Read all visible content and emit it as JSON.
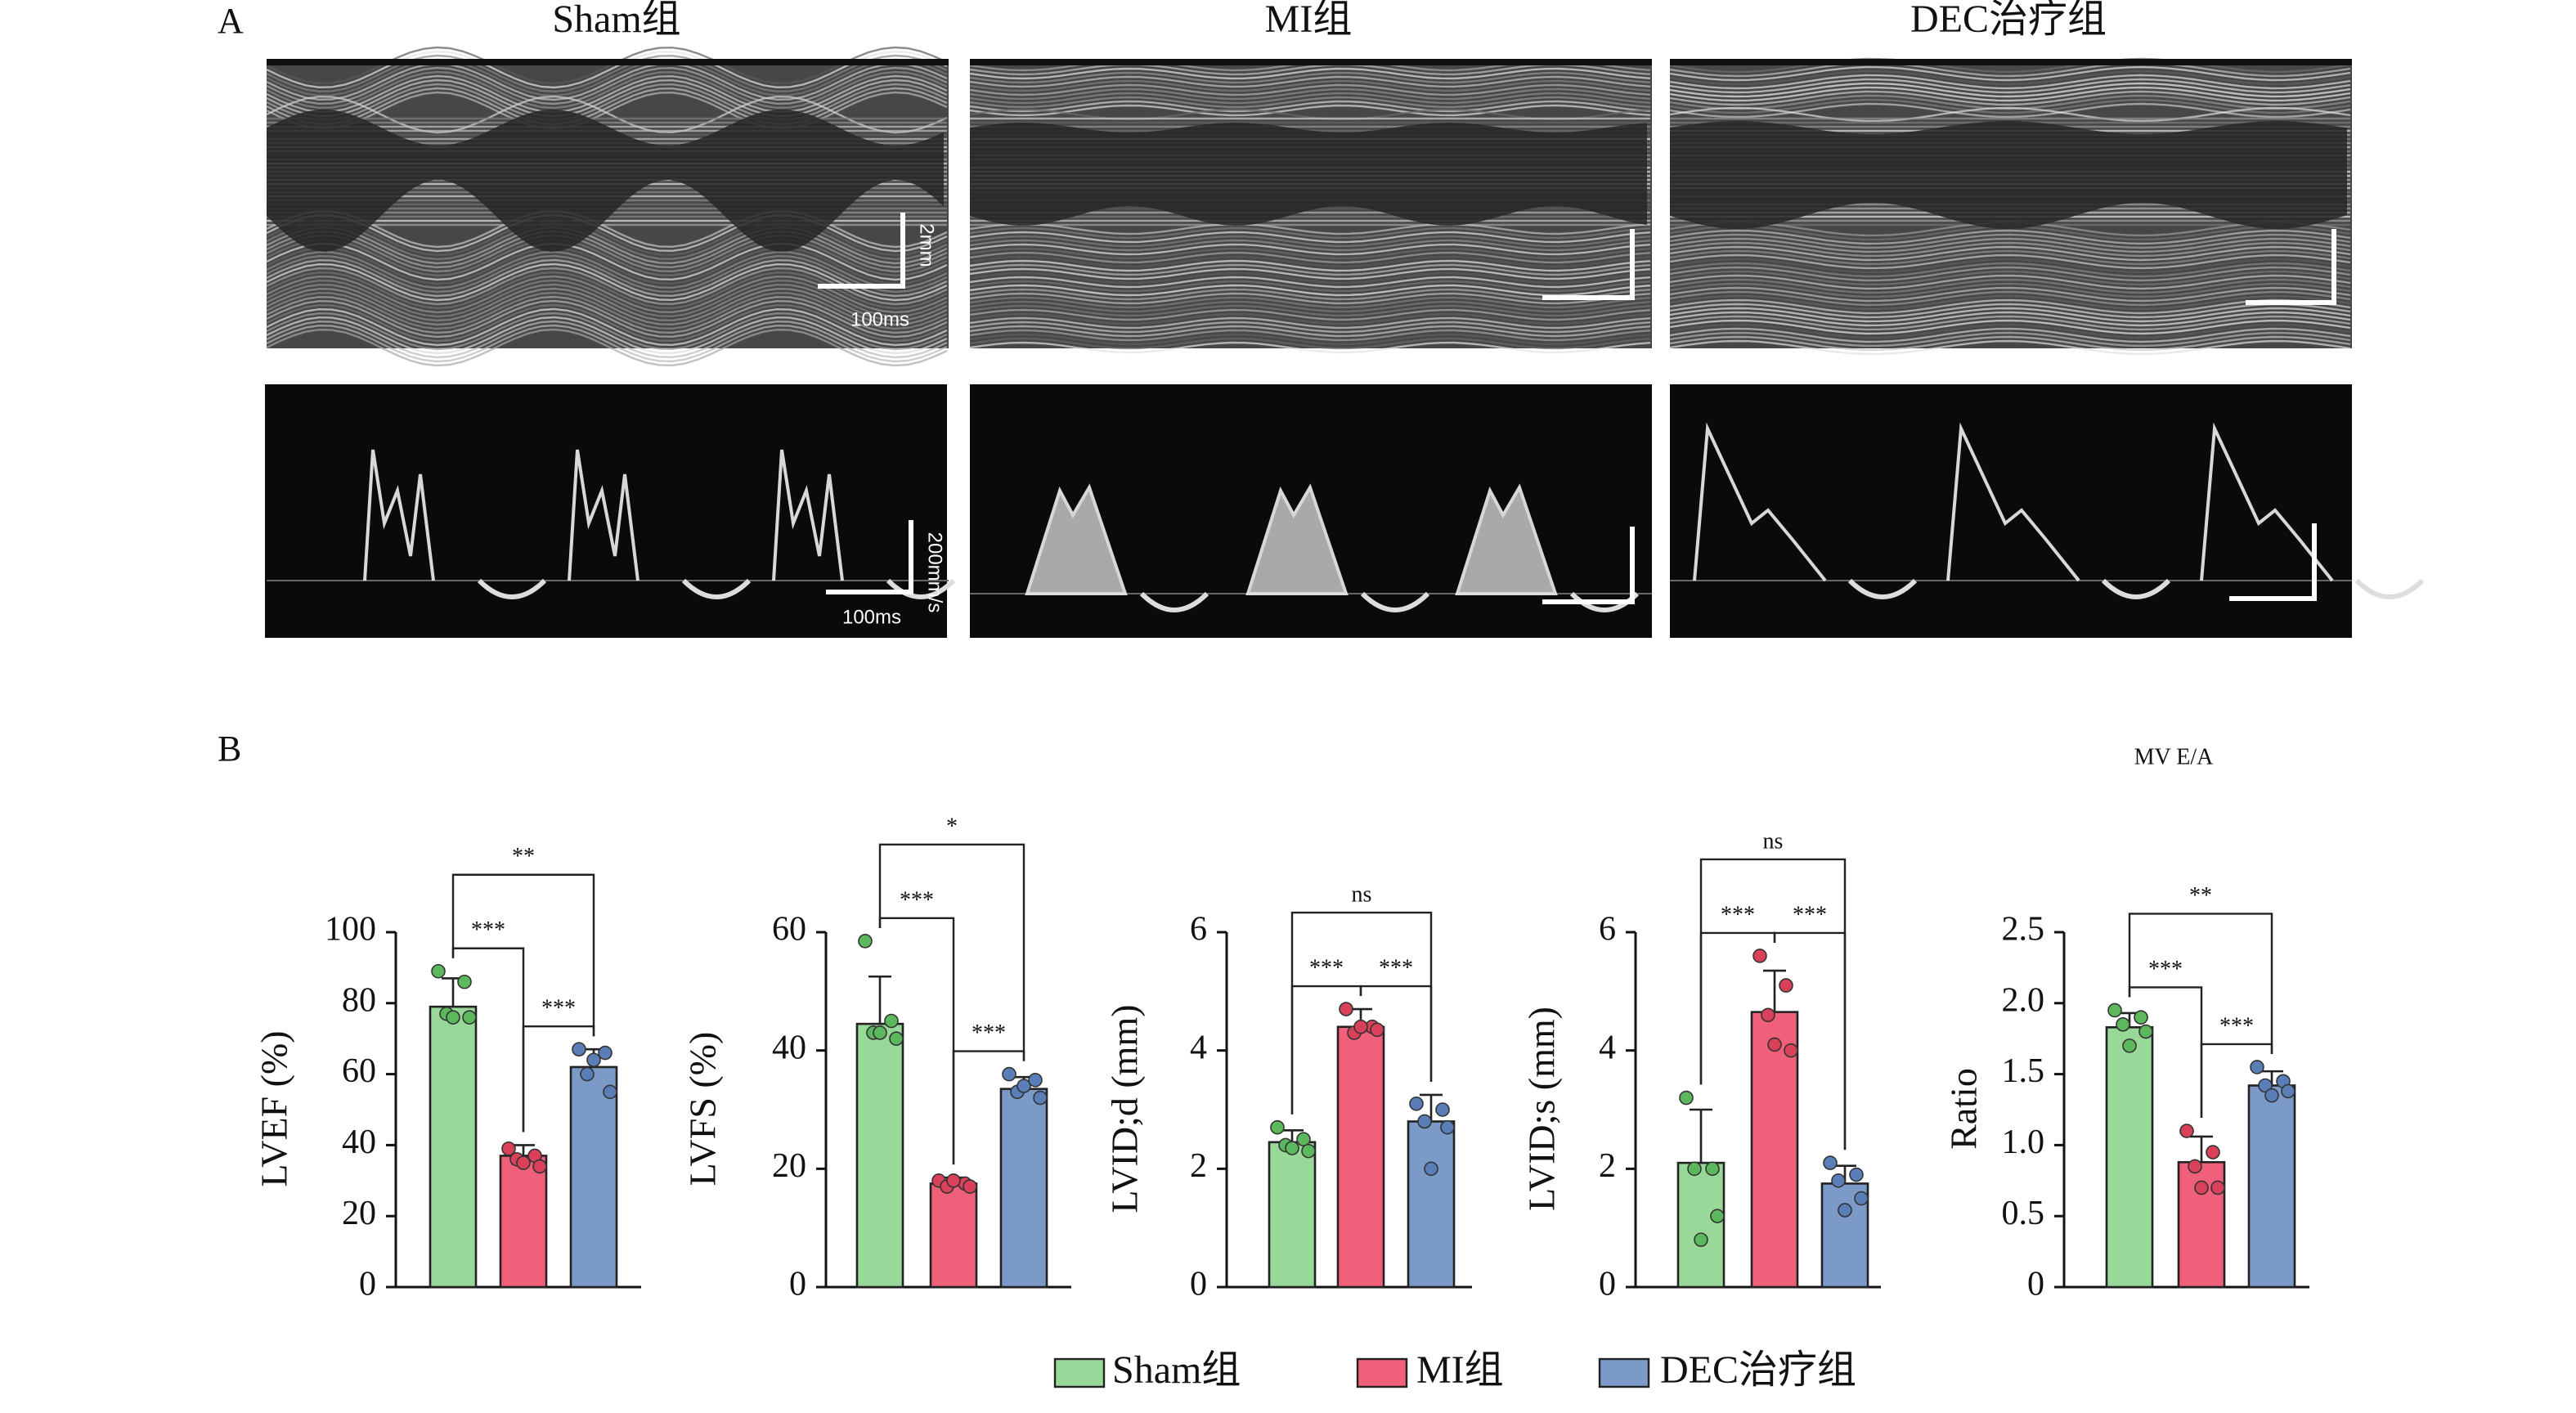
{
  "panel_a": {
    "label": "A",
    "columns": [
      "Sham组",
      "MI组",
      "DEC治疗组"
    ],
    "scale_labels": {
      "mmode_length": "2mm",
      "mmode_time": "100ms",
      "doppler_velocity": "200mm/s",
      "doppler_time": "100ms"
    }
  },
  "panel_b_label": "B",
  "legend": {
    "names": [
      "Sham组",
      "MI组",
      "DEC治疗组"
    ],
    "colors": [
      "#98d898",
      "#f0607a",
      "#7b9ac8"
    ]
  },
  "point_colors": [
    "#5cb85c",
    "#d9405a",
    "#5a7fb8"
  ],
  "chart_data": [
    {
      "type": "bar",
      "ylabel": "LVEF (%)",
      "values": [
        79,
        37,
        62
      ],
      "errors": [
        8,
        3,
        5
      ],
      "points": [
        [
          89,
          86,
          77,
          76,
          76
        ],
        [
          39,
          37,
          36,
          34,
          35
        ],
        [
          67,
          66,
          60,
          55,
          64
        ]
      ],
      "ylim": [
        0,
        100
      ],
      "yticks": [
        0,
        20,
        40,
        60,
        80,
        100
      ],
      "comparisons": [
        {
          "pair": [
            0,
            1
          ],
          "label": "***"
        },
        {
          "pair": [
            1,
            2
          ],
          "label": "***"
        },
        {
          "pair": [
            0,
            2
          ],
          "label": "**"
        }
      ]
    },
    {
      "type": "bar",
      "ylabel": "LVFS (%)",
      "values": [
        44.5,
        17.5,
        33.5
      ],
      "errors": [
        8,
        1,
        2
      ],
      "points": [
        [
          58.5,
          45,
          43,
          42,
          43
        ],
        [
          18,
          17.5,
          17,
          17,
          18
        ],
        [
          36,
          35,
          33,
          32,
          34
        ]
      ],
      "ylim": [
        0,
        60
      ],
      "yticks": [
        0,
        20,
        40,
        60
      ],
      "comparisons": [
        {
          "pair": [
            0,
            1
          ],
          "label": "***"
        },
        {
          "pair": [
            1,
            2
          ],
          "label": "***"
        },
        {
          "pair": [
            0,
            2
          ],
          "label": "*"
        }
      ]
    },
    {
      "type": "bar",
      "ylabel": "LVID;d (mm)",
      "values": [
        2.45,
        4.4,
        2.8
      ],
      "errors": [
        0.2,
        0.3,
        0.45
      ],
      "points": [
        [
          2.7,
          2.5,
          2.4,
          2.3,
          2.35
        ],
        [
          4.7,
          4.4,
          4.3,
          4.35,
          4.4
        ],
        [
          3.1,
          3.0,
          2.8,
          2.7,
          2.0
        ]
      ],
      "ylim": [
        0,
        6
      ],
      "yticks": [
        0,
        2,
        4,
        6
      ],
      "comparisons": [
        {
          "pair": [
            0,
            1
          ],
          "label": "***"
        },
        {
          "pair": [
            1,
            2
          ],
          "label": "***"
        },
        {
          "pair": [
            0,
            2
          ],
          "label": "ns"
        }
      ]
    },
    {
      "type": "bar",
      "ylabel": "LVID;s (mm)",
      "values": [
        2.1,
        4.65,
        1.75
      ],
      "errors": [
        0.9,
        0.7,
        0.3
      ],
      "points": [
        [
          3.2,
          2.0,
          2.0,
          1.2,
          0.8
        ],
        [
          5.6,
          5.1,
          4.6,
          4.0,
          4.1
        ],
        [
          2.1,
          1.9,
          1.8,
          1.5,
          1.3
        ]
      ],
      "ylim": [
        0,
        6
      ],
      "yticks": [
        0,
        2,
        4,
        6
      ],
      "comparisons": [
        {
          "pair": [
            0,
            1
          ],
          "label": "***"
        },
        {
          "pair": [
            1,
            2
          ],
          "label": "***"
        },
        {
          "pair": [
            0,
            2
          ],
          "label": "ns"
        }
      ]
    },
    {
      "type": "bar",
      "title": "MV E/A",
      "ylabel": "Ratio",
      "values": [
        1.83,
        0.88,
        1.42
      ],
      "errors": [
        0.1,
        0.18,
        0.1
      ],
      "points": [
        [
          1.95,
          1.9,
          1.85,
          1.8,
          1.7
        ],
        [
          1.1,
          0.95,
          0.85,
          0.7,
          0.7
        ],
        [
          1.55,
          1.45,
          1.42,
          1.38,
          1.35
        ]
      ],
      "ylim": [
        0,
        2.5
      ],
      "yticks": [
        0,
        0.5,
        {
          "value": 1,
          "label": "1.0"
        },
        1.5,
        {
          "value": 2,
          "label": "2.0"
        },
        2.5
      ],
      "comparisons": [
        {
          "pair": [
            0,
            1
          ],
          "label": "***"
        },
        {
          "pair": [
            1,
            2
          ],
          "label": "***"
        },
        {
          "pair": [
            0,
            2
          ],
          "label": "**"
        }
      ]
    }
  ]
}
